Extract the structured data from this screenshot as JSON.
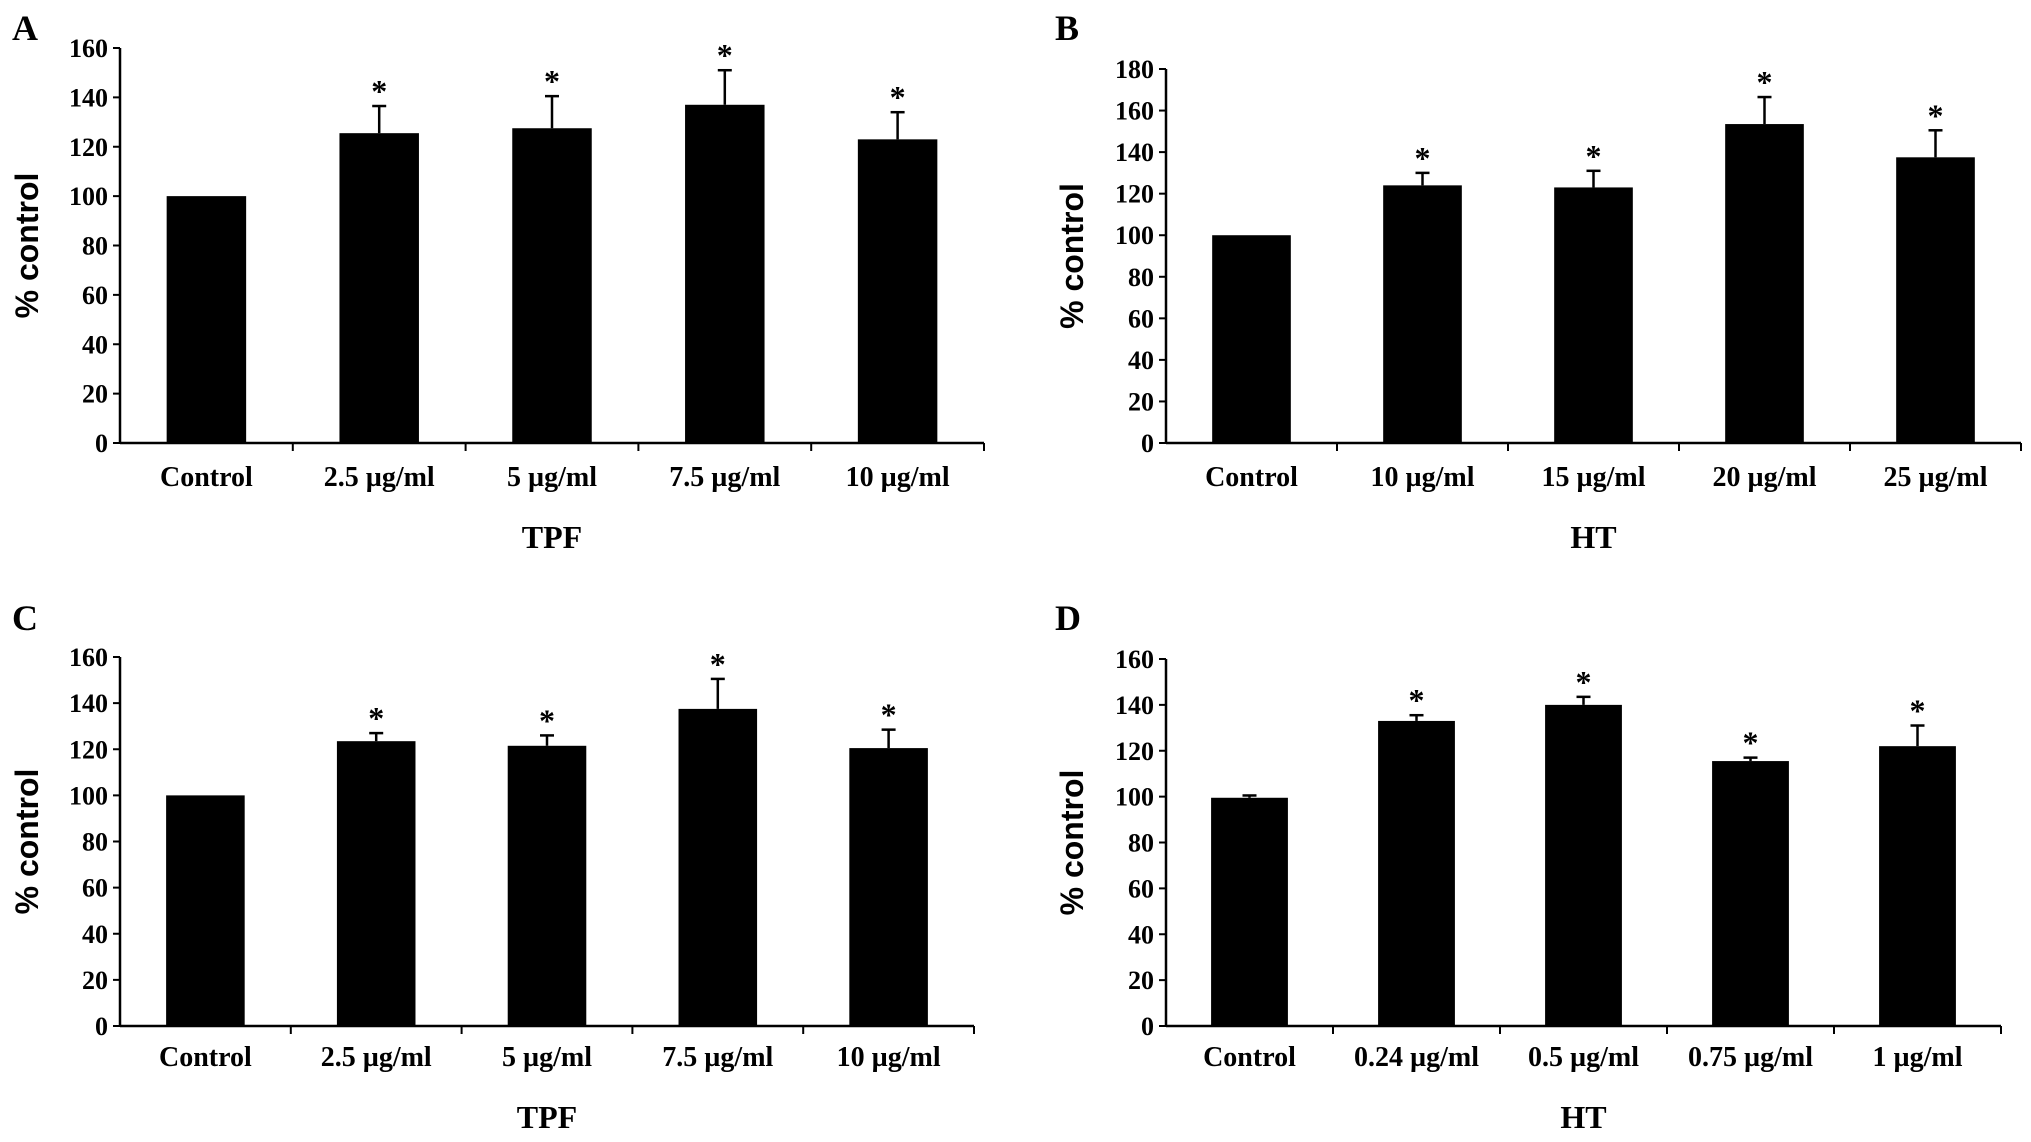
{
  "chart_data": [
    {
      "panel": "A",
      "type": "bar",
      "title": "",
      "xlabel": "TPF",
      "ylabel": "% control",
      "categories": [
        "Control",
        "2.5 µg/ml",
        "5 µg/ml",
        "7.5 µg/ml",
        "10 µg/ml"
      ],
      "values": [
        100,
        125.5,
        127.5,
        137,
        123
      ],
      "errors": [
        0,
        11,
        13,
        14,
        11
      ],
      "significance": [
        "",
        "*",
        "*",
        "*",
        "*"
      ],
      "ylim": [
        0,
        160
      ],
      "yticks": [
        0,
        20,
        40,
        60,
        80,
        100,
        120,
        140,
        160
      ],
      "grid": false
    },
    {
      "panel": "B",
      "type": "bar",
      "title": "",
      "xlabel": "HT",
      "ylabel": "% control",
      "categories": [
        "Control",
        "10 µg/ml",
        "15 µg/ml",
        "20 µg/ml",
        "25 µg/ml"
      ],
      "values": [
        100,
        124,
        123,
        153.5,
        137.5
      ],
      "errors": [
        0,
        6,
        8,
        13,
        13
      ],
      "significance": [
        "",
        "*",
        "*",
        "*",
        "*"
      ],
      "ylim": [
        0,
        180
      ],
      "yticks": [
        0,
        20,
        40,
        60,
        80,
        100,
        120,
        140,
        160,
        180
      ],
      "grid": false
    },
    {
      "panel": "C",
      "type": "bar",
      "title": "",
      "xlabel": "TPF",
      "ylabel": "% control",
      "categories": [
        "Control",
        "2.5 µg/ml",
        "5 µg/ml",
        "7.5 µg/ml",
        "10 µg/ml"
      ],
      "values": [
        100,
        123.5,
        121.5,
        137.5,
        120.5
      ],
      "errors": [
        0,
        3.5,
        4.5,
        13,
        8
      ],
      "significance": [
        "",
        "*",
        "*",
        "*",
        "*"
      ],
      "ylim": [
        0,
        160
      ],
      "yticks": [
        0,
        20,
        40,
        60,
        80,
        100,
        120,
        140,
        160
      ],
      "grid": false
    },
    {
      "panel": "D",
      "type": "bar",
      "title": "",
      "xlabel": "HT",
      "ylabel": "% control",
      "categories": [
        "Control",
        "0.24 µg/ml",
        "0.5 µg/ml",
        "0.75 µg/ml",
        "1 µg/ml"
      ],
      "values": [
        99.5,
        133,
        140,
        115.5,
        122
      ],
      "errors": [
        1,
        2.5,
        3.5,
        1.5,
        9
      ],
      "significance": [
        "",
        "*",
        "*",
        "*",
        "*"
      ],
      "ylim": [
        0,
        160
      ],
      "yticks": [
        0,
        20,
        40,
        60,
        80,
        100,
        120,
        140,
        160
      ],
      "grid": false
    }
  ]
}
